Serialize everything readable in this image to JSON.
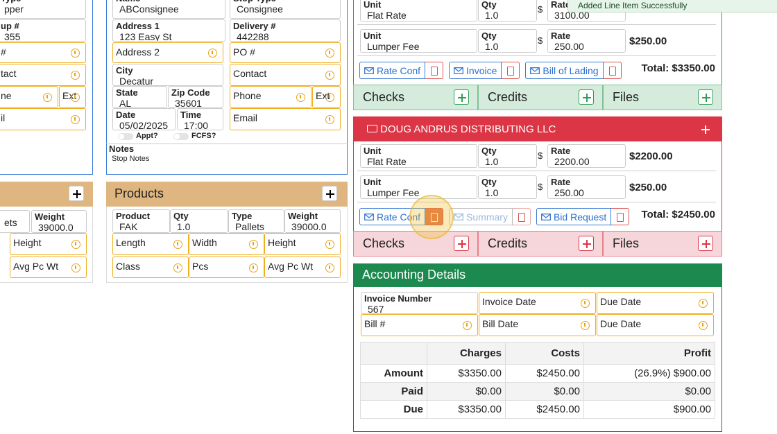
{
  "toast": "Added Line Item Successfully",
  "left_stop": {
    "fields": [
      {
        "label": "Type",
        "value": "pper"
      },
      {
        "label": "up #",
        "value": "355"
      },
      {
        "label": "#"
      },
      {
        "label": "tact"
      },
      {
        "label": "ne"
      },
      {
        "label": "Ext"
      },
      {
        "label": "il"
      }
    ]
  },
  "left_products": {
    "fields": [
      {
        "value": "ets"
      },
      {
        "label": "Weight",
        "value": "39000.0"
      },
      {
        "label": "Height"
      },
      {
        "label": "Avg Pc Wt"
      }
    ]
  },
  "consignee": {
    "fields": [
      {
        "label": "Name",
        "value": "ABConsignee"
      },
      {
        "label": "Stop Type",
        "value": "Consignee"
      },
      {
        "label": "Address 1",
        "value": "123 Easy St"
      },
      {
        "label": "Delivery #",
        "value": "442288"
      },
      {
        "label": "Address 2"
      },
      {
        "label": "PO #"
      },
      {
        "label": "City",
        "value": "Decatur"
      },
      {
        "label": "Contact"
      },
      {
        "label": "State",
        "value": "AL"
      },
      {
        "label": "Zip Code",
        "value": "35601"
      },
      {
        "label": "Phone"
      },
      {
        "label": "Ext"
      },
      {
        "label": "Date",
        "value": "05/02/2025"
      },
      {
        "label": "Time",
        "value": "17:00"
      },
      {
        "label": "Email"
      }
    ],
    "toggles": [
      "Appt?",
      "FCFS?"
    ],
    "notes": {
      "label": "Notes",
      "value": "Stop Notes"
    }
  },
  "products": {
    "title": "Products",
    "fields": [
      {
        "label": "Product",
        "value": "FAK"
      },
      {
        "label": "Qty",
        "value": "1.0"
      },
      {
        "label": "Type",
        "value": "Pallets"
      },
      {
        "label": "Weight",
        "value": "39000.0"
      },
      {
        "label": "Length"
      },
      {
        "label": "Width"
      },
      {
        "label": "Height"
      },
      {
        "label": "Class"
      },
      {
        "label": "Pcs"
      },
      {
        "label": "Avg Pc Wt"
      }
    ]
  },
  "carriers": [
    {
      "color": "#2f9e57",
      "tint": "#d5ecdc",
      "lines": [
        {
          "unit": {
            "label": "Unit",
            "value": "Flat Rate"
          },
          "qty": {
            "label": "Qty",
            "value": "1.0"
          },
          "currency": "$",
          "rate": {
            "label": "Rate",
            "value": "3100.00"
          }
        },
        {
          "unit": {
            "label": "Unit",
            "value": "Lumper Fee"
          },
          "qty": {
            "label": "Qty",
            "value": "1.0"
          },
          "currency": "$",
          "rate": {
            "label": "Rate",
            "value": "250.00"
          },
          "amount": "$250.00"
        }
      ],
      "documents": [
        {
          "label": "Rate Conf"
        },
        {
          "label": "Invoice"
        },
        {
          "label": "Bill of Lading"
        }
      ],
      "total": "Total: $3350.00",
      "tabs": [
        "Checks",
        "Credits",
        "Files"
      ]
    },
    {
      "name": "DOUG ANDRUS DISTRIBUTING LLC",
      "color": "#dc3545",
      "tint": "#f6d6da",
      "lines": [
        {
          "unit": {
            "label": "Unit",
            "value": "Flat Rate"
          },
          "qty": {
            "label": "Qty",
            "value": "1.0"
          },
          "currency": "$",
          "rate": {
            "label": "Rate",
            "value": "2200.00"
          },
          "amount": "$2200.00"
        },
        {
          "unit": {
            "label": "Unit",
            "value": "Lumper Fee"
          },
          "qty": {
            "label": "Qty",
            "value": "1.0"
          },
          "currency": "$",
          "rate": {
            "label": "Rate",
            "value": "250.00"
          },
          "amount": "$250.00"
        }
      ],
      "documents": [
        {
          "label": "Rate Conf"
        },
        {
          "label": "Summary",
          "disabled": true
        },
        {
          "label": "Bid Request"
        }
      ],
      "total": "Total: $2450.00",
      "tabs": [
        "Checks",
        "Credits",
        "Files"
      ]
    }
  ],
  "accounting": {
    "title": "Accounting Details",
    "fields": [
      {
        "label": "Invoice Number",
        "value": "567"
      },
      {
        "label": "Invoice Date"
      },
      {
        "label": "Due Date"
      },
      {
        "label": "Bill #"
      },
      {
        "label": "Bill Date"
      },
      {
        "label": "Due Date"
      }
    ],
    "table": {
      "columns": [
        "Charges",
        "Costs",
        "Profit"
      ],
      "rows": [
        {
          "label": "Amount",
          "cells": [
            "$3350.00",
            "$2450.00",
            "(26.9%) $900.00"
          ]
        },
        {
          "label": "Paid",
          "cells": [
            "$0.00",
            "$0.00",
            "$0.00"
          ]
        },
        {
          "label": "Due",
          "cells": [
            "$3350.00",
            "$2450.00",
            "$900.00"
          ]
        }
      ]
    }
  }
}
